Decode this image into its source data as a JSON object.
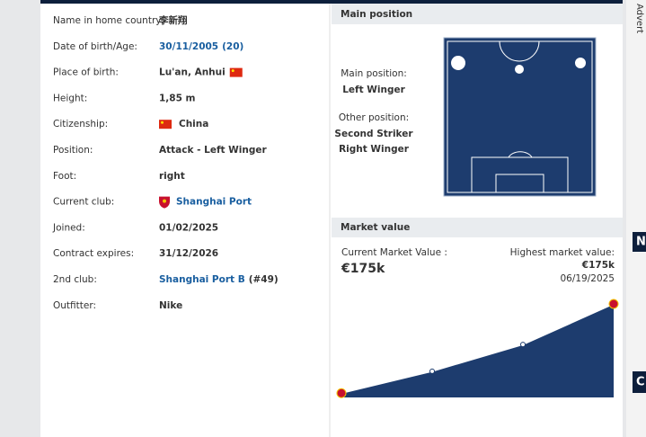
{
  "profile": {
    "rows": [
      {
        "label": "Name in home country:",
        "value": "李新翔"
      },
      {
        "label": "Date of birth/Age:",
        "value": "30/11/2005",
        "extra": "(20)"
      },
      {
        "label": "Place of birth:",
        "value": "Lu'an, Anhui"
      },
      {
        "label": "Height:",
        "value": "1,85 m"
      },
      {
        "label": "Citizenship:",
        "value": "China"
      },
      {
        "label": "Position:",
        "value": "Attack - Left Winger"
      },
      {
        "label": "Foot:",
        "value": "right"
      },
      {
        "label": "Current club:",
        "value": "Shanghai Port"
      },
      {
        "label": "Joined:",
        "value": "01/02/2025"
      },
      {
        "label": "Contract expires:",
        "value": "31/12/2026"
      },
      {
        "label": "2nd club:",
        "value": "Shanghai Port B",
        "extra": "(#49)"
      },
      {
        "label": "Outfitter:",
        "value": "Nike"
      }
    ]
  },
  "main_position": {
    "title": "Main position",
    "main_label": "Main position:",
    "main": "Left Winger",
    "other_label": "Other position:",
    "other": [
      "Second Striker",
      "Right Winger"
    ]
  },
  "market_value": {
    "title": "Market value",
    "current_label": "Current Market Value :",
    "current": "€175k",
    "highest_label": "Highest market value:",
    "highest": "€175k",
    "highest_date": "06/19/2025"
  },
  "chart_data": {
    "type": "area",
    "values": [
      8,
      49,
      99,
      175
    ],
    "color": "#1d3c6e"
  },
  "sidebar": {
    "advert": "Advert",
    "box1": "N",
    "box2": "C"
  }
}
